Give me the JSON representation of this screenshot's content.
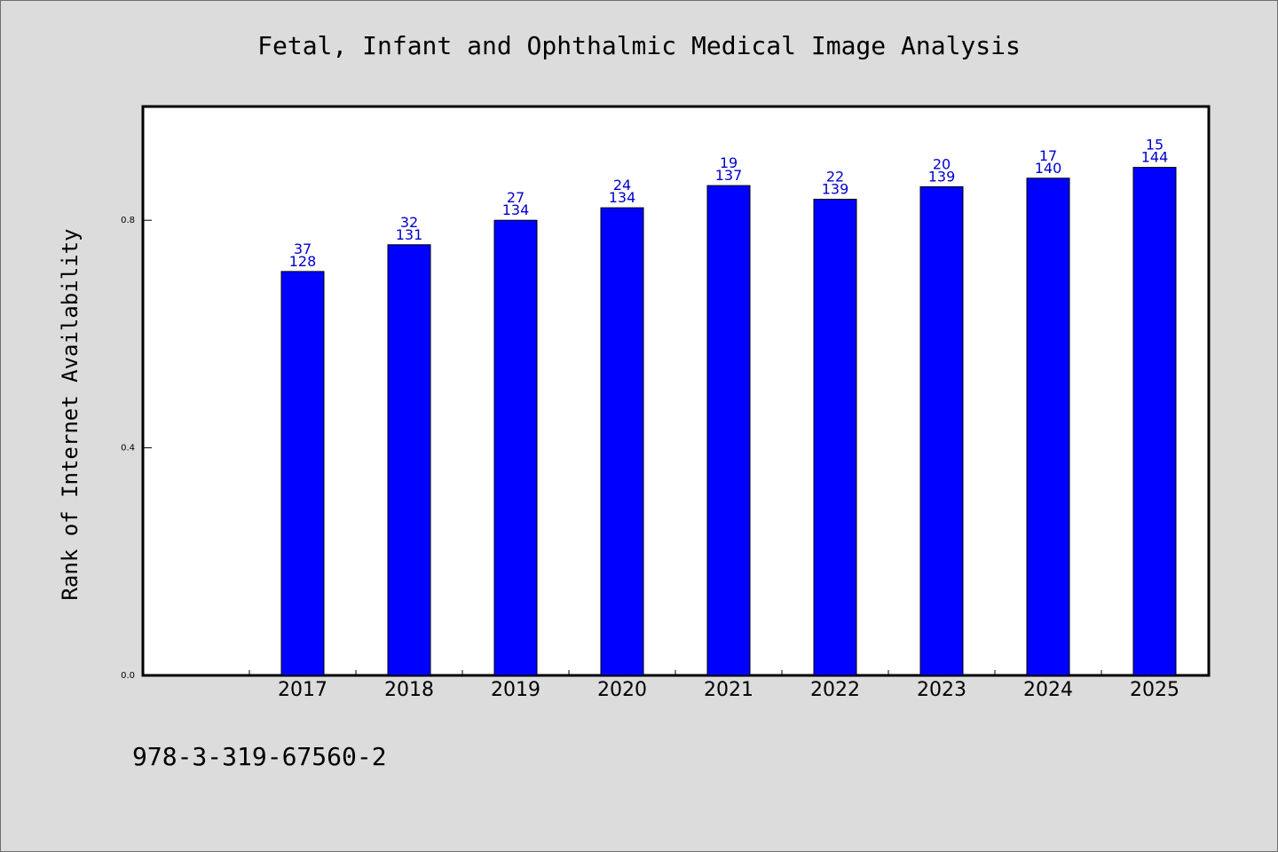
{
  "chart_data": {
    "type": "bar",
    "title": "Fetal, Infant and Ophthalmic Medical Image Analysis",
    "xlabel": "",
    "ylabel": "Rank of Internet Availability",
    "categories": [
      "2017",
      "2018",
      "2019",
      "2020",
      "2021",
      "2022",
      "2023",
      "2024",
      "2025"
    ],
    "series": [
      {
        "values": [
          0.71,
          0.757,
          0.8,
          0.822,
          0.861,
          0.837,
          0.859,
          0.874,
          0.893
        ]
      }
    ],
    "bar_labels": [
      {
        "top": "37",
        "bottom": "128"
      },
      {
        "top": "32",
        "bottom": "131"
      },
      {
        "top": "27",
        "bottom": "134"
      },
      {
        "top": "24",
        "bottom": "134"
      },
      {
        "top": "19",
        "bottom": "137"
      },
      {
        "top": "22",
        "bottom": "139"
      },
      {
        "top": "20",
        "bottom": "139"
      },
      {
        "top": "17",
        "bottom": "140"
      },
      {
        "top": "15",
        "bottom": "144"
      }
    ],
    "yticks": [
      "0.0",
      "0.4",
      "0.8"
    ],
    "ylim": [
      0,
      1
    ],
    "grid": false,
    "legend": "none",
    "bar_color": "#0000ff",
    "label_color": "#0000cc"
  },
  "footer": {
    "isbn": "978-3-319-67560-2"
  }
}
